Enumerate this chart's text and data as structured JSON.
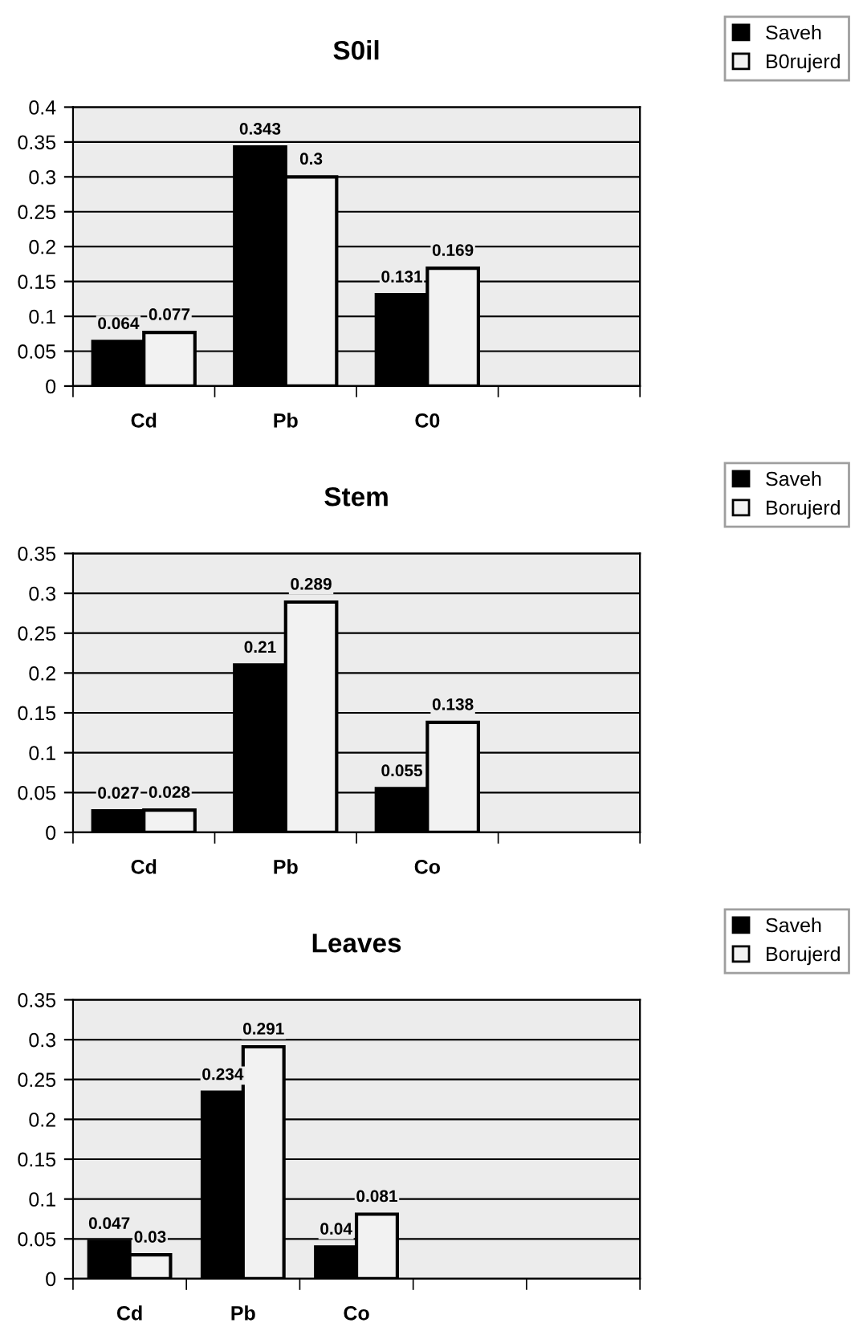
{
  "chart_data": [
    {
      "type": "bar",
      "title": "S0il",
      "categories": [
        "Cd",
        "Pb",
        "C0",
        null
      ],
      "series": [
        {
          "name": "Saveh",
          "color": "#000000",
          "values": [
            0.064,
            0.343,
            0.131,
            null
          ]
        },
        {
          "name": "B0rujerd",
          "color": "#f2f2f2",
          "values": [
            0.077,
            0.3,
            0.169,
            null
          ]
        }
      ],
      "ylim": [
        0,
        0.4
      ],
      "yticks": [
        0,
        0.05,
        0.1,
        0.15,
        0.2,
        0.25,
        0.3,
        0.35,
        0.4
      ],
      "grid": "y",
      "legend": "top right",
      "data_labels": true
    },
    {
      "type": "bar",
      "title": "Stem",
      "categories": [
        "Cd",
        "Pb",
        "Co",
        null
      ],
      "series": [
        {
          "name": "Saveh",
          "color": "#000000",
          "values": [
            0.027,
            0.21,
            0.055,
            null
          ]
        },
        {
          "name": "Borujerd",
          "color": "#f2f2f2",
          "values": [
            0.028,
            0.289,
            0.138,
            null
          ]
        }
      ],
      "ylim": [
        0,
        0.35
      ],
      "yticks": [
        0,
        0.05,
        0.1,
        0.15,
        0.2,
        0.25,
        0.3,
        0.35
      ],
      "grid": "y",
      "legend": "top right",
      "data_labels": true
    },
    {
      "type": "bar",
      "title": "Leaves",
      "categories": [
        "Cd",
        "Pb",
        "Co",
        null,
        null
      ],
      "series": [
        {
          "name": "Saveh",
          "color": "#000000",
          "values": [
            0.047,
            0.234,
            0.04,
            null,
            null
          ]
        },
        {
          "name": "Borujerd",
          "color": "#f2f2f2",
          "values": [
            0.03,
            0.291,
            0.081,
            null,
            null
          ]
        }
      ],
      "ylim": [
        0,
        0.35
      ],
      "yticks": [
        0,
        0.05,
        0.1,
        0.15,
        0.2,
        0.25,
        0.3,
        0.35
      ],
      "grid": "y",
      "legend": "top right",
      "data_labels": true
    }
  ]
}
